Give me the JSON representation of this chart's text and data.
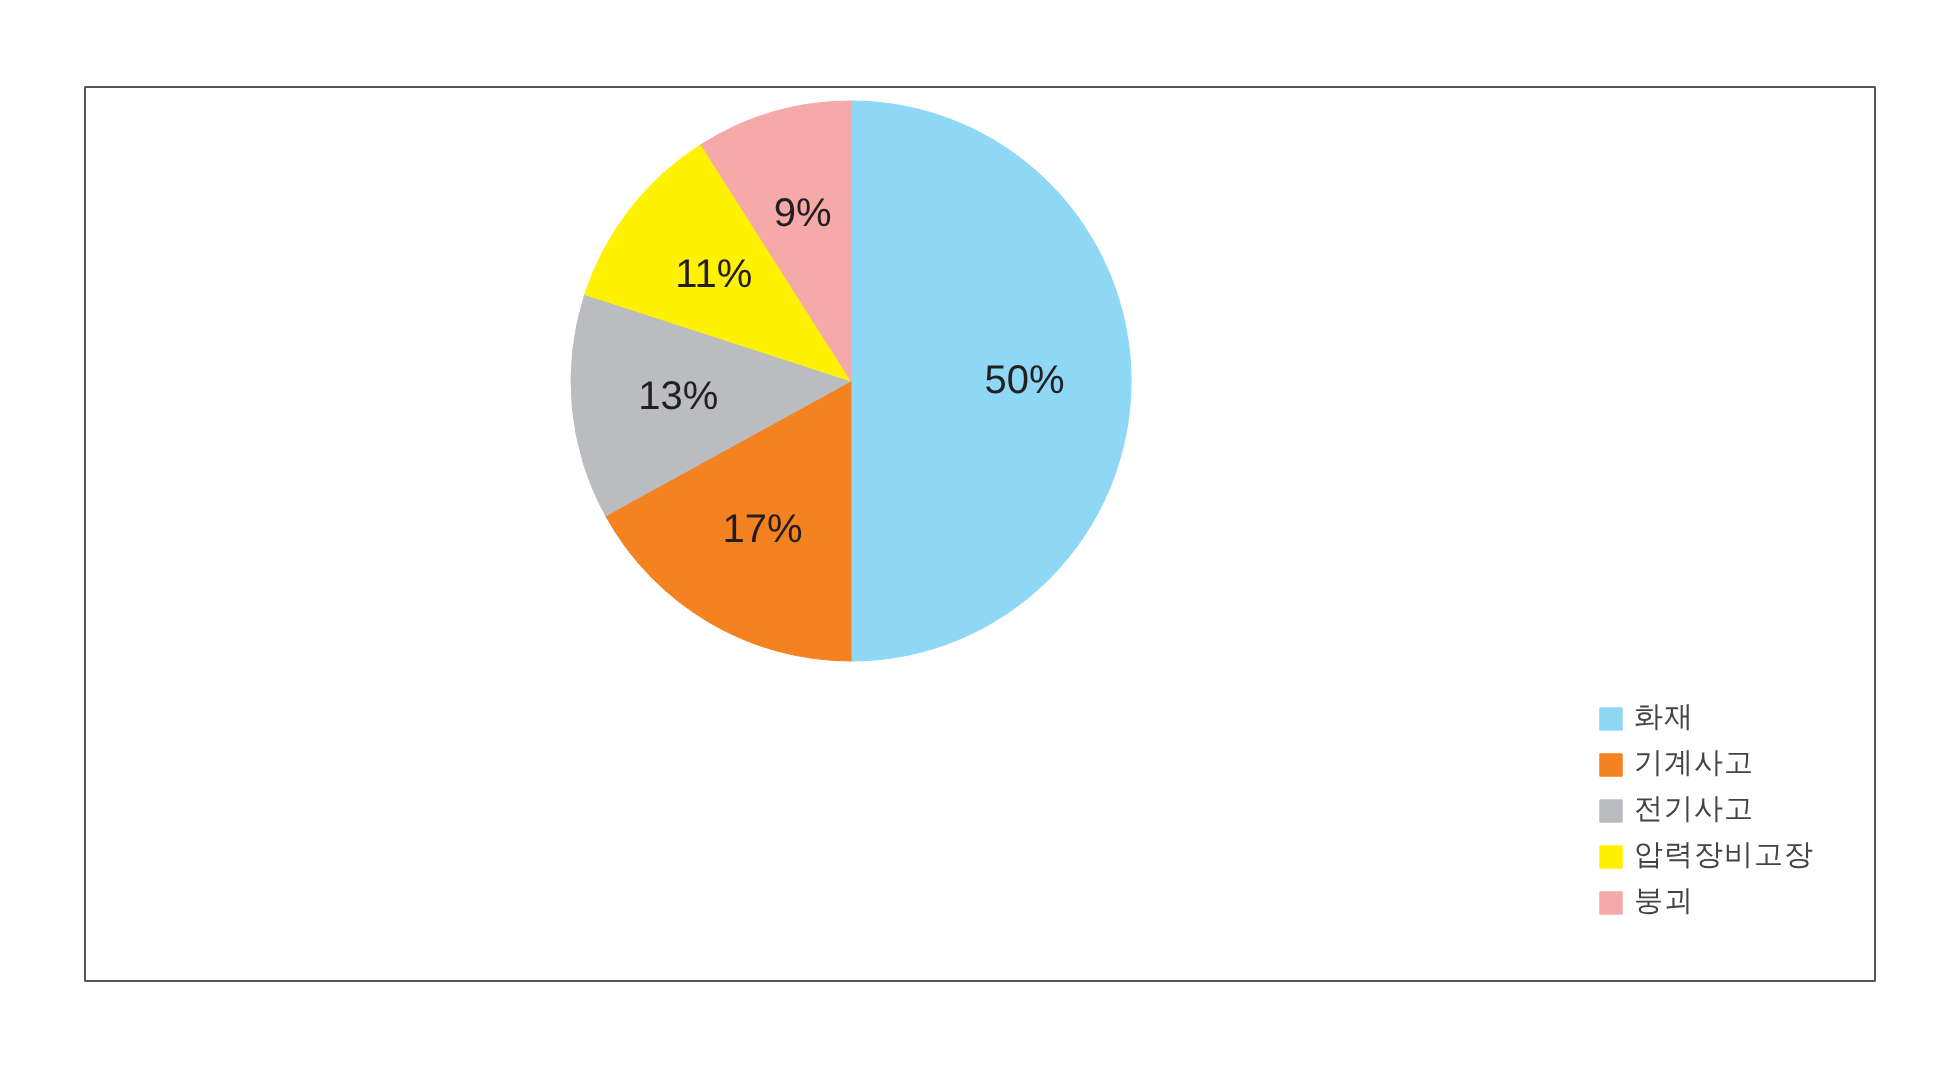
{
  "chart_data": {
    "type": "pie",
    "categories": [
      "화재",
      "기계사고",
      "전기사고",
      "압력장비고장",
      "붕괴"
    ],
    "values": [
      50,
      17,
      13,
      11,
      9
    ],
    "colors": [
      "#8fd8f5",
      "#f58220",
      "#bbbcbf",
      "#fff200",
      "#f6a9a9"
    ],
    "value_labels": [
      "50%",
      "17%",
      "13%",
      "11%",
      "9%"
    ],
    "legend": "bottom right"
  }
}
